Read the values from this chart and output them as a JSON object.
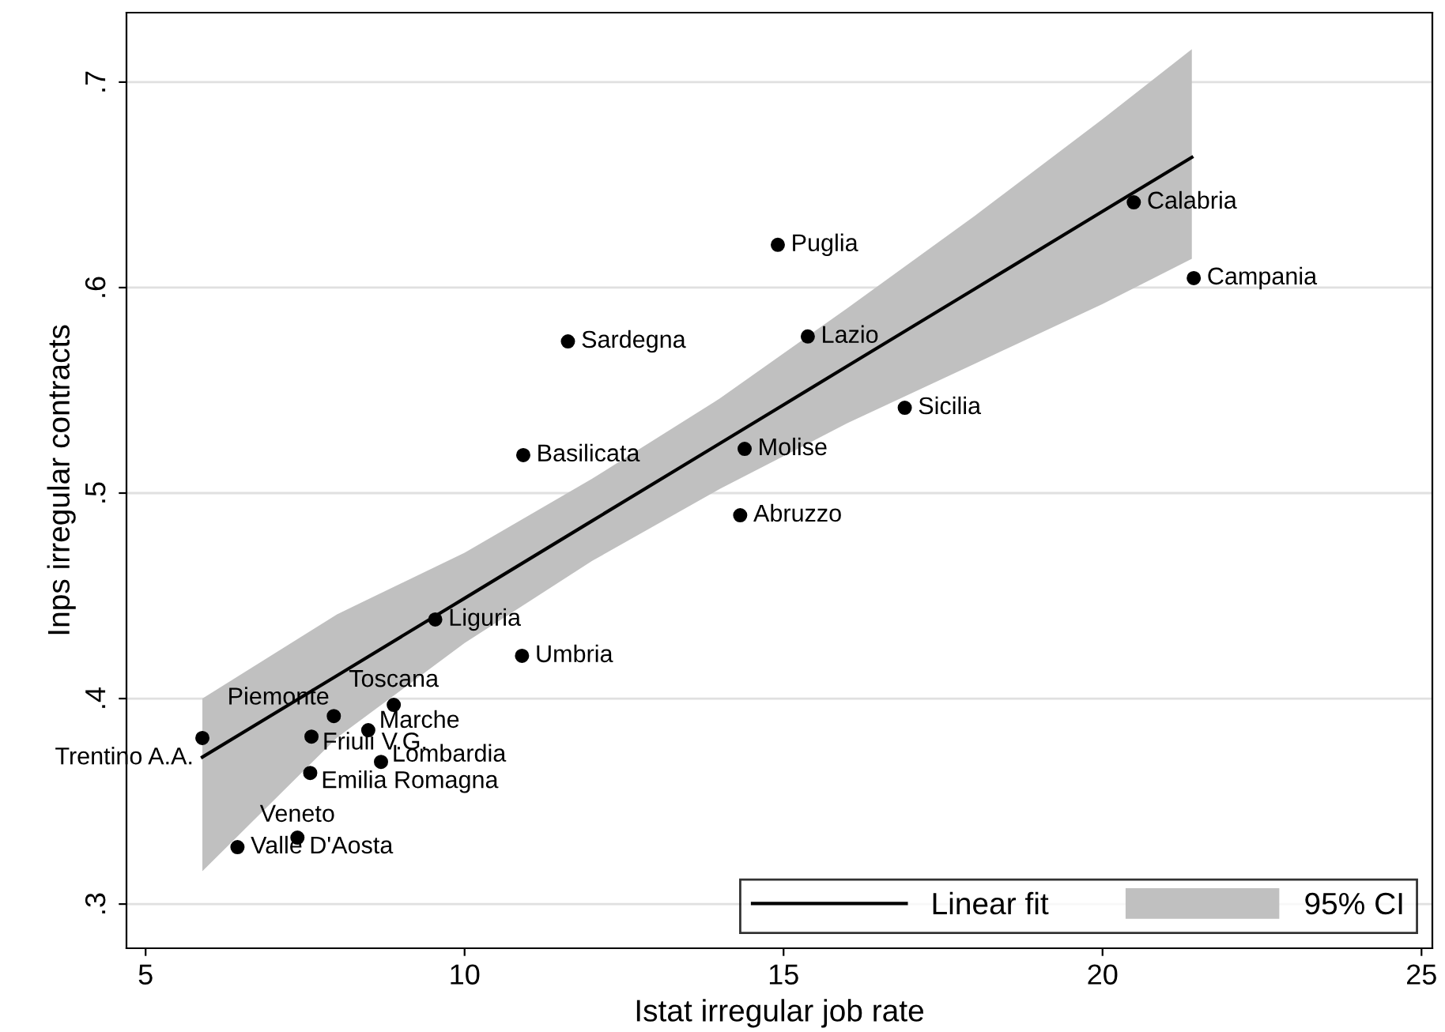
{
  "chart_data": {
    "type": "scatter",
    "xlabel": "Istat irregular job rate",
    "ylabel": "Inps irregular contracts",
    "xlim": [
      4.7,
      25.17
    ],
    "ylim": [
      0.2785,
      0.7338
    ],
    "xticks": [
      5,
      10,
      15,
      20,
      25
    ],
    "yticks": [
      {
        "value": 0.3,
        "label": ".3"
      },
      {
        "value": 0.4,
        "label": ".4"
      },
      {
        "value": 0.5,
        "label": ".5"
      },
      {
        "value": 0.6,
        "label": ".6"
      },
      {
        "value": 0.7,
        "label": ".7"
      }
    ],
    "grid": "y",
    "legend": "bottom right",
    "series": [
      {
        "name": "Linear fit",
        "type": "line",
        "color": "#000000",
        "marker": "none",
        "x": [
          5.89,
          8,
          10,
          12,
          14,
          16,
          18,
          20,
          21.4
        ],
        "values": [
          0.3715,
          0.4112,
          0.4488,
          0.4865,
          0.5241,
          0.5618,
          0.5994,
          0.6371,
          0.6634
        ],
        "lower": [
          0.316,
          0.381,
          0.427,
          0.467,
          0.502,
          0.534,
          0.563,
          0.592,
          0.614
        ],
        "upper": [
          0.4,
          0.441,
          0.471,
          0.507,
          0.546,
          0.59,
          0.635,
          0.682,
          0.716
        ]
      },
      {
        "color": "#000000",
        "marker": "circle",
        "x": [
          20.49,
          21.43,
          14.91,
          15.38,
          16.9,
          11.62,
          10.92,
          14.39,
          14.32,
          9.54,
          10.9,
          8.89,
          7.95,
          8.49,
          7.6,
          5.89,
          8.69,
          7.58,
          7.38,
          6.44
        ],
        "values": [
          0.6415,
          0.6046,
          0.6208,
          0.5762,
          0.5415,
          0.5738,
          0.5185,
          0.5215,
          0.4892,
          0.4385,
          0.4208,
          0.3969,
          0.3915,
          0.3846,
          0.3815,
          0.3808,
          0.3692,
          0.3638,
          0.3323,
          0.3277
        ]
      }
    ],
    "annotations": [
      "95% CI",
      {
        "text": "Calabria",
        "x": 20.49,
        "y": 0.6415
      },
      {
        "text": "Campania",
        "x": 21.43,
        "y": 0.6046
      },
      {
        "text": "Puglia",
        "x": 14.91,
        "y": 0.6208
      },
      {
        "text": "Lazio",
        "x": 15.38,
        "y": 0.5762
      },
      {
        "text": "Sicilia",
        "x": 16.9,
        "y": 0.5415
      },
      {
        "text": "Sardegna",
        "x": 11.62,
        "y": 0.5738
      },
      {
        "text": "Basilicata",
        "x": 10.92,
        "y": 0.5185
      },
      {
        "text": "Molise",
        "x": 14.39,
        "y": 0.5215
      },
      {
        "text": "Abruzzo",
        "x": 14.32,
        "y": 0.4892
      },
      {
        "text": "Liguria",
        "x": 9.54,
        "y": 0.4385
      },
      {
        "text": "Umbria",
        "x": 10.9,
        "y": 0.4208
      },
      {
        "text": "Toscana",
        "x": 8.89,
        "y": 0.3969
      },
      {
        "text": "Piemonte",
        "x": 7.95,
        "y": 0.3915
      },
      {
        "text": "Marche",
        "x": 8.49,
        "y": 0.3846
      },
      {
        "text": "Friuli V.G.",
        "x": 7.6,
        "y": 0.3815
      },
      {
        "text": "Trentino A.A.",
        "x": 5.89,
        "y": 0.3808
      },
      {
        "text": "Lombardia",
        "x": 8.69,
        "y": 0.3692
      },
      {
        "text": "Emilia Romagna",
        "x": 7.58,
        "y": 0.3638
      },
      {
        "text": "Veneto",
        "x": 7.38,
        "y": 0.3323
      },
      {
        "text": "Valle D'Aosta",
        "x": 6.44,
        "y": 0.3277
      }
    ]
  }
}
